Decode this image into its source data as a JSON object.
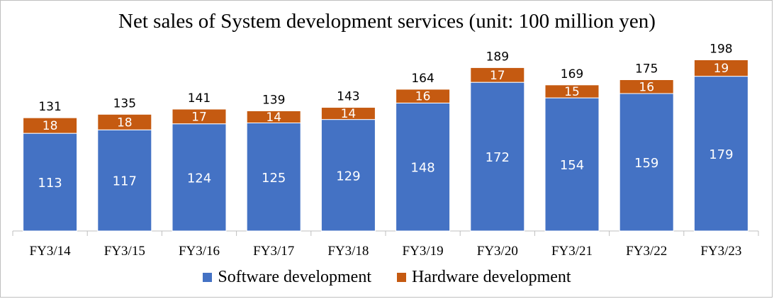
{
  "chart_data": {
    "type": "bar",
    "stacked": true,
    "title": "Net sales of System development services (unit: 100 million yen)",
    "categories": [
      "FY3/14",
      "FY3/15",
      "FY3/16",
      "FY3/17",
      "FY3/18",
      "FY3/19",
      "FY3/20",
      "FY3/21",
      "FY3/22",
      "FY3/23"
    ],
    "series": [
      {
        "name": "Software development",
        "color": "#4472c4",
        "values": [
          113,
          117,
          124,
          125,
          129,
          148,
          172,
          154,
          159,
          179
        ]
      },
      {
        "name": "Hardware development",
        "color": "#c55a11",
        "values": [
          18,
          18,
          17,
          14,
          14,
          16,
          17,
          15,
          16,
          19
        ]
      }
    ],
    "totals": [
      131,
      135,
      141,
      139,
      143,
      164,
      189,
      169,
      175,
      198
    ],
    "ylim": [
      0,
      200
    ],
    "grid": false,
    "legend_position": "bottom"
  }
}
